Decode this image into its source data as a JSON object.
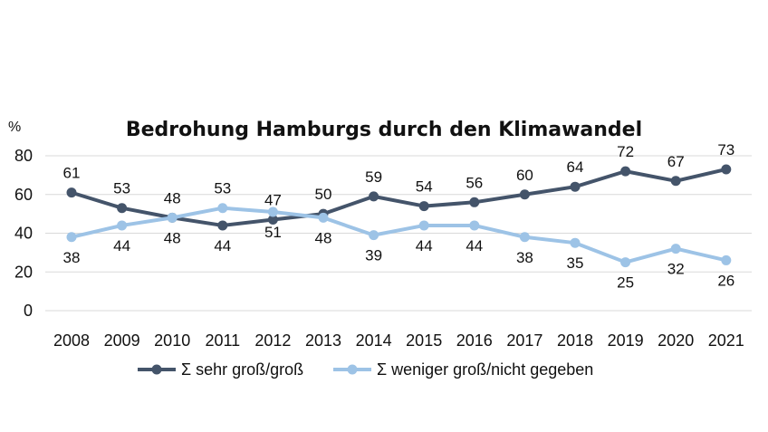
{
  "chart_data": {
    "type": "line",
    "title": "Bedrohung Hamburgs durch den Klimawandel",
    "ylabel": "%",
    "xlabel": "",
    "ylim": [
      0,
      80
    ],
    "yticks": [
      0,
      20,
      40,
      60,
      80
    ],
    "grid": true,
    "legend_position": "bottom",
    "categories": [
      "2008",
      "2009",
      "2010",
      "2011",
      "2012",
      "2013",
      "2014",
      "2015",
      "2016",
      "2017",
      "2018",
      "2019",
      "2020",
      "2021"
    ],
    "series": [
      {
        "name": "Σ sehr groß/groß",
        "color": "#44546a",
        "values": [
          61,
          53,
          48,
          44,
          47,
          50,
          59,
          54,
          56,
          60,
          64,
          72,
          67,
          73
        ],
        "label_position": [
          "above",
          "above",
          "above",
          "below",
          "above",
          "above",
          "above",
          "above",
          "above",
          "above",
          "above",
          "above",
          "above",
          "above"
        ]
      },
      {
        "name": "Σ weniger groß/nicht gegeben",
        "color": "#9dc3e6",
        "values": [
          38,
          44,
          48,
          53,
          51,
          48,
          39,
          44,
          44,
          38,
          35,
          25,
          32,
          26
        ],
        "label_position": [
          "below",
          "below",
          "below",
          "above",
          "below",
          "below",
          "below",
          "below",
          "below",
          "below",
          "below",
          "below",
          "below",
          "below"
        ]
      }
    ]
  }
}
